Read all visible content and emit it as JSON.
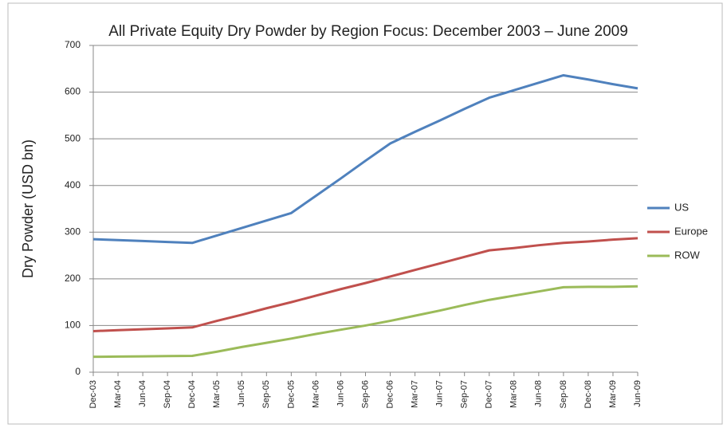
{
  "chart_data": {
    "type": "line",
    "title": "All Private Equity Dry Powder by Region Focus: December 2003 – June 2009",
    "y_label": "Dry Powder (USD bn)",
    "categories": [
      "Dec-03",
      "Mar-04",
      "Jun-04",
      "Sep-04",
      "Dec-04",
      "Mar-05",
      "Jun-05",
      "Sep-05",
      "Dec-05",
      "Mar-06",
      "Jun-06",
      "Sep-06",
      "Dec-06",
      "Mar-07",
      "Jun-07",
      "Sep-07",
      "Dec-07",
      "Mar-08",
      "Jun-08",
      "Sep-08",
      "Dec-08",
      "Mar-09",
      "Jun-09"
    ],
    "series": [
      {
        "name": "US",
        "color": "#4f81bd",
        "values": [
          285,
          283,
          281,
          279,
          277,
          293,
          309,
          325,
          341,
          378,
          415,
          453,
          490,
          515,
          539,
          564,
          588,
          604,
          620,
          636,
          627,
          617,
          608
        ]
      },
      {
        "name": "Europe",
        "color": "#c0504d",
        "values": [
          88,
          90,
          92,
          94,
          96,
          110,
          123,
          137,
          150,
          164,
          178,
          191,
          205,
          219,
          233,
          247,
          261,
          266,
          272,
          277,
          280,
          284,
          287
        ]
      },
      {
        "name": "ROW",
        "color": "#9bbb59",
        "values": [
          33,
          33.5,
          34,
          34.5,
          35,
          44,
          54,
          63,
          72,
          82,
          91,
          100,
          110,
          121,
          132,
          144,
          155,
          164,
          173,
          182,
          183,
          183,
          184
        ]
      }
    ],
    "ylim": [
      0,
      700
    ],
    "yticks": [
      0,
      100,
      200,
      300,
      400,
      500,
      600,
      700
    ],
    "grid": true,
    "legend": "right"
  }
}
